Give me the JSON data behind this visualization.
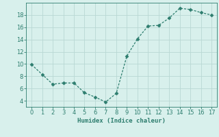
{
  "x": [
    0,
    1,
    2,
    3,
    4,
    5,
    6,
    7,
    8,
    9,
    10,
    11,
    12,
    13,
    14,
    15,
    16,
    17
  ],
  "y": [
    9.9,
    8.3,
    6.7,
    6.9,
    6.9,
    5.3,
    4.6,
    3.8,
    5.2,
    11.3,
    14.1,
    16.2,
    16.3,
    17.5,
    19.1,
    18.9,
    18.4,
    18.0
  ],
  "line_color": "#2d7d6e",
  "marker": "D",
  "marker_size": 2.5,
  "background_color": "#d8f0ec",
  "grid_color": "#b8d8d4",
  "xlabel": "Humidex (Indice chaleur)",
  "xlim": [
    -0.5,
    17.5
  ],
  "ylim": [
    3,
    20
  ],
  "yticks": [
    4,
    6,
    8,
    10,
    12,
    14,
    16,
    18
  ],
  "xticks": [
    0,
    1,
    2,
    3,
    4,
    5,
    6,
    7,
    8,
    9,
    10,
    11,
    12,
    13,
    14,
    15,
    16,
    17
  ],
  "xlabel_fontsize": 6.5,
  "tick_fontsize": 6,
  "tick_color": "#2d7d6e",
  "spine_color": "#2d7d6e"
}
